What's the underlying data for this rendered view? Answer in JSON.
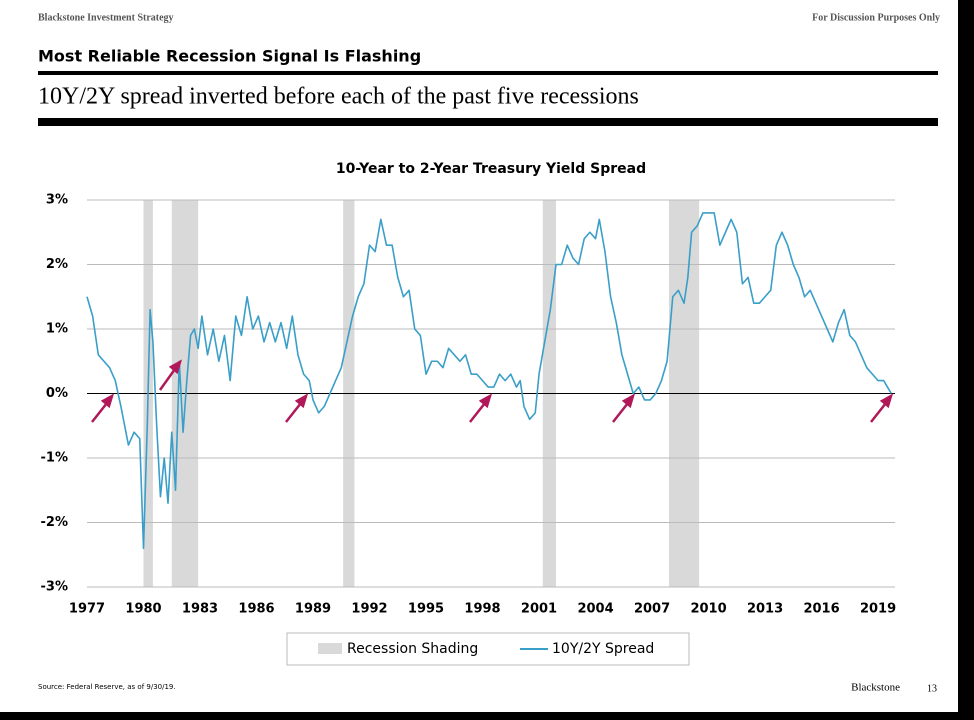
{
  "header": {
    "left": "Blackstone Investment Strategy",
    "right": "For Discussion Purposes Only",
    "title": "Most Reliable Recession Signal Is Flashing",
    "subtitle": "10Y/2Y spread inverted before each of the past five recessions"
  },
  "footer": {
    "source": "Source: Federal Reserve, as of 9/30/19.",
    "brand": "Blackstone",
    "page": "13"
  },
  "chart_data": {
    "type": "line",
    "title": "10-Year to 2-Year Treasury Yield Spread",
    "xlim": [
      1977,
      2019.9
    ],
    "xticks": [
      1977,
      1980,
      1983,
      1986,
      1989,
      1992,
      1995,
      1998,
      2001,
      2004,
      2007,
      2010,
      2013,
      2016,
      2019
    ],
    "ylim": [
      -3,
      3
    ],
    "yticks": [
      {
        "value": -3,
        "label": "-3%"
      },
      {
        "value": -2,
        "label": "-2%"
      },
      {
        "value": -1,
        "label": "-1%"
      },
      {
        "value": 0,
        "label": "0%"
      },
      {
        "value": 1,
        "label": "1%"
      },
      {
        "value": 2,
        "label": "2%"
      },
      {
        "value": 3,
        "label": "3%"
      }
    ],
    "grid": true,
    "recessions": {
      "name": "Recession Shading",
      "color": "#d9d9d9",
      "periods": [
        [
          1980.0,
          1980.5
        ],
        [
          1981.5,
          1982.9
        ],
        [
          1990.6,
          1991.2
        ],
        [
          2001.2,
          2001.9
        ],
        [
          2007.9,
          2009.5
        ]
      ]
    },
    "x": [
      1977.0,
      1977.3,
      1977.6,
      1977.9,
      1978.2,
      1978.5,
      1978.8,
      1979.0,
      1979.2,
      1979.5,
      1979.8,
      1980.0,
      1980.2,
      1980.35,
      1980.5,
      1980.7,
      1980.9,
      1981.1,
      1981.3,
      1981.5,
      1981.7,
      1981.9,
      1982.1,
      1982.3,
      1982.5,
      1982.7,
      1982.9,
      1983.1,
      1983.4,
      1983.7,
      1984.0,
      1984.3,
      1984.6,
      1984.9,
      1985.2,
      1985.5,
      1985.8,
      1986.1,
      1986.4,
      1986.7,
      1987.0,
      1987.3,
      1987.6,
      1987.9,
      1988.2,
      1988.5,
      1988.8,
      1989.0,
      1989.3,
      1989.6,
      1989.9,
      1990.2,
      1990.5,
      1990.8,
      1991.1,
      1991.4,
      1991.7,
      1992.0,
      1992.3,
      1992.6,
      1992.9,
      1993.2,
      1993.5,
      1993.8,
      1994.1,
      1994.4,
      1994.7,
      1995.0,
      1995.3,
      1995.6,
      1995.9,
      1996.2,
      1996.5,
      1996.8,
      1997.1,
      1997.4,
      1997.7,
      1998.0,
      1998.3,
      1998.6,
      1998.9,
      1999.2,
      1999.5,
      1999.8,
      2000.0,
      2000.2,
      2000.5,
      2000.8,
      2001.0,
      2001.3,
      2001.6,
      2001.9,
      2002.2,
      2002.5,
      2002.8,
      2003.1,
      2003.4,
      2003.7,
      2004.0,
      2004.2,
      2004.5,
      2004.8,
      2005.1,
      2005.4,
      2005.7,
      2006.0,
      2006.3,
      2006.6,
      2006.9,
      2007.2,
      2007.5,
      2007.8,
      2008.1,
      2008.4,
      2008.7,
      2008.9,
      2009.1,
      2009.4,
      2009.7,
      2010.0,
      2010.3,
      2010.6,
      2010.9,
      2011.2,
      2011.5,
      2011.8,
      2012.1,
      2012.4,
      2012.7,
      2013.0,
      2013.3,
      2013.6,
      2013.9,
      2014.2,
      2014.5,
      2014.8,
      2015.1,
      2015.4,
      2015.7,
      2016.0,
      2016.3,
      2016.6,
      2016.9,
      2017.2,
      2017.5,
      2017.8,
      2018.1,
      2018.4,
      2018.7,
      2019.0,
      2019.3,
      2019.5,
      2019.7
    ],
    "series": [
      {
        "name": "10Y/2Y Spread",
        "color": "#3a9fc8",
        "values": [
          1.5,
          1.2,
          0.6,
          0.5,
          0.4,
          0.2,
          -0.2,
          -0.5,
          -0.8,
          -0.6,
          -0.7,
          -2.4,
          -0.5,
          1.3,
          0.8,
          -0.5,
          -1.6,
          -1.0,
          -1.7,
          -0.6,
          -1.5,
          0.5,
          -0.6,
          0.2,
          0.9,
          1.0,
          0.7,
          1.2,
          0.6,
          1.0,
          0.5,
          0.9,
          0.2,
          1.2,
          0.9,
          1.5,
          1.0,
          1.2,
          0.8,
          1.1,
          0.8,
          1.1,
          0.7,
          1.2,
          0.6,
          0.3,
          0.2,
          -0.1,
          -0.3,
          -0.2,
          0.0,
          0.2,
          0.4,
          0.8,
          1.2,
          1.5,
          1.7,
          2.3,
          2.2,
          2.7,
          2.3,
          2.3,
          1.8,
          1.5,
          1.6,
          1.0,
          0.9,
          0.3,
          0.5,
          0.5,
          0.4,
          0.7,
          0.6,
          0.5,
          0.6,
          0.3,
          0.3,
          0.2,
          0.1,
          0.1,
          0.3,
          0.2,
          0.3,
          0.1,
          0.2,
          -0.2,
          -0.4,
          -0.3,
          0.3,
          0.8,
          1.3,
          2.0,
          2.0,
          2.3,
          2.1,
          2.0,
          2.4,
          2.5,
          2.4,
          2.7,
          2.2,
          1.5,
          1.1,
          0.6,
          0.3,
          0.0,
          0.1,
          -0.1,
          -0.1,
          0.0,
          0.2,
          0.5,
          1.5,
          1.6,
          1.4,
          1.8,
          2.5,
          2.6,
          2.8,
          2.8,
          2.8,
          2.3,
          2.5,
          2.7,
          2.5,
          1.7,
          1.8,
          1.4,
          1.4,
          1.5,
          1.6,
          2.3,
          2.5,
          2.3,
          2.0,
          1.8,
          1.5,
          1.6,
          1.4,
          1.2,
          1.0,
          0.8,
          1.1,
          1.3,
          0.9,
          0.8,
          0.6,
          0.4,
          0.3,
          0.2,
          0.2,
          0.1,
          0.0
        ]
      }
    ]
  }
}
